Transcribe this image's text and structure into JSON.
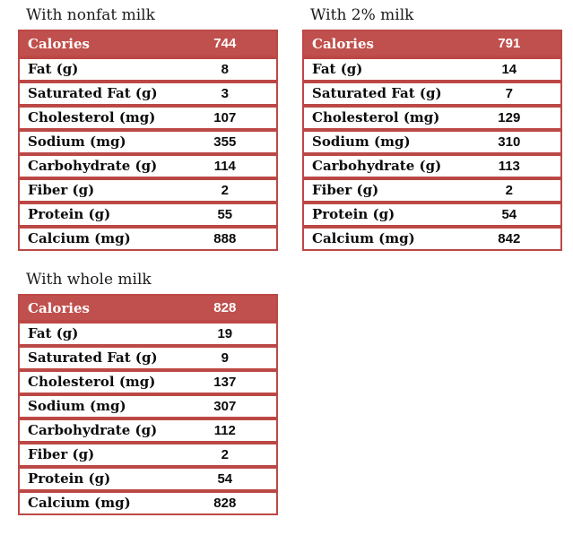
{
  "colors": {
    "table_red": "#C0504D",
    "border_red": "#BC4845",
    "header_text": "#FFFFFF",
    "body_text": "#0B0B0B",
    "title_text": "#1C1C1C",
    "page_background": "#FFFFFF"
  },
  "tables": [
    {
      "title": "With nonfat milk",
      "header": {
        "label": "Calories",
        "value": "744"
      },
      "rows": [
        {
          "label": "Fat (g)",
          "value": "8"
        },
        {
          "label": "Saturated Fat (g)",
          "value": "3"
        },
        {
          "label": "Cholesterol (mg)",
          "value": "107"
        },
        {
          "label": "Sodium (mg)",
          "value": "355"
        },
        {
          "label": "Carbohydrate (g)",
          "value": "114"
        },
        {
          "label": "Fiber (g)",
          "value": "2"
        },
        {
          "label": "Protein (g)",
          "value": "55"
        },
        {
          "label": "Calcium (mg)",
          "value": "888"
        }
      ]
    },
    {
      "title": "With 2% milk",
      "header": {
        "label": "Calories",
        "value": "791"
      },
      "rows": [
        {
          "label": "Fat (g)",
          "value": "14"
        },
        {
          "label": "Saturated Fat (g)",
          "value": "7"
        },
        {
          "label": "Cholesterol (mg)",
          "value": "129"
        },
        {
          "label": "Sodium (mg)",
          "value": "310"
        },
        {
          "label": "Carbohydrate (g)",
          "value": "113"
        },
        {
          "label": "Fiber (g)",
          "value": "2"
        },
        {
          "label": "Protein (g)",
          "value": "54"
        },
        {
          "label": "Calcium (mg)",
          "value": "842"
        }
      ]
    },
    {
      "title": "With whole milk",
      "header": {
        "label": "Calories",
        "value": "828"
      },
      "rows": [
        {
          "label": "Fat (g)",
          "value": "19"
        },
        {
          "label": "Saturated Fat (g)",
          "value": "9"
        },
        {
          "label": "Cholesterol (mg)",
          "value": "137"
        },
        {
          "label": "Sodium (mg)",
          "value": "307"
        },
        {
          "label": "Carbohydrate (g)",
          "value": "112"
        },
        {
          "label": "Fiber (g)",
          "value": "2"
        },
        {
          "label": "Protein (g)",
          "value": "54"
        },
        {
          "label": "Calcium (mg)",
          "value": "828"
        }
      ]
    }
  ]
}
